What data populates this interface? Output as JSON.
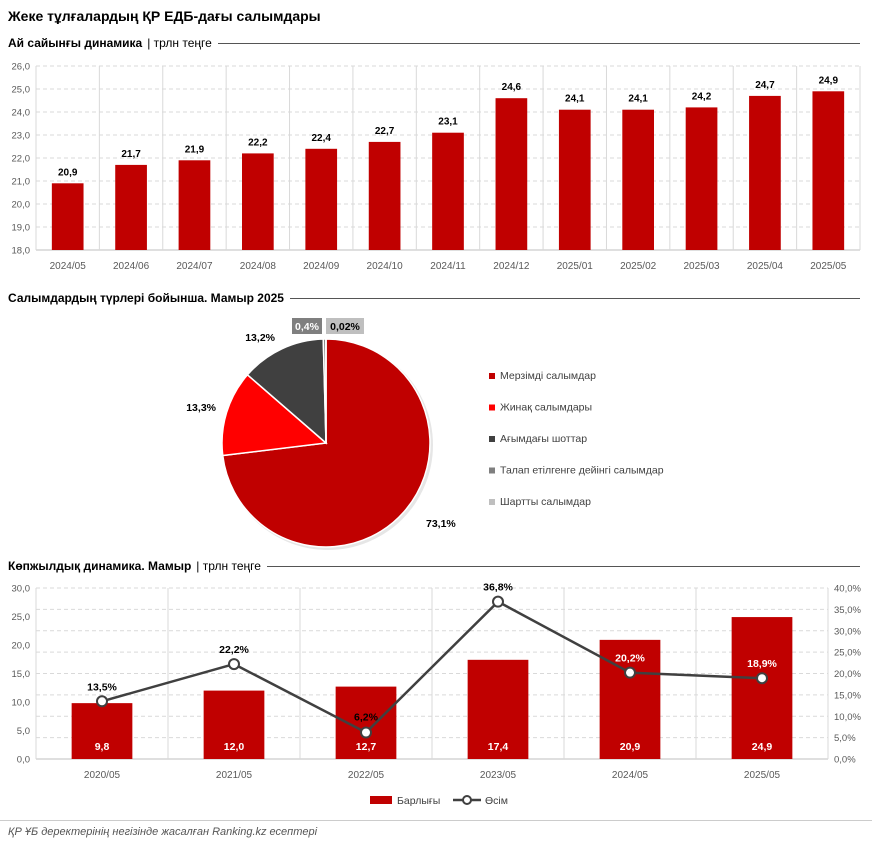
{
  "page": {
    "title": "Жеке тұлғалардың ҚР ЕДБ-дағы салымдары",
    "footer": "ҚР ҰБ деректерінің негізінде жасалған Ranking.kz есептері"
  },
  "chart_data": [
    {
      "type": "bar",
      "title": "Ай сайынғы динамика",
      "unit": "| трлн теңге",
      "categories": [
        "2024/05",
        "2024/06",
        "2024/07",
        "2024/08",
        "2024/09",
        "2024/10",
        "2024/11",
        "2024/12",
        "2025/01",
        "2025/02",
        "2025/03",
        "2025/04",
        "2025/05"
      ],
      "values": [
        20.9,
        21.7,
        21.9,
        22.2,
        22.4,
        22.7,
        23.1,
        24.6,
        24.1,
        24.1,
        24.2,
        24.7,
        24.9
      ],
      "value_labels": [
        "20,9",
        "21,7",
        "21,9",
        "22,2",
        "22,4",
        "22,7",
        "23,1",
        "24,6",
        "24,1",
        "24,1",
        "24,2",
        "24,7",
        "24,9"
      ],
      "ylim": [
        18,
        26
      ],
      "yticks": [
        "18,0",
        "19,0",
        "20,0",
        "21,0",
        "22,0",
        "23,0",
        "24,0",
        "25,0",
        "26,0"
      ],
      "color": "#c00000",
      "grid": true
    },
    {
      "type": "pie",
      "title": "Салымдардың түрлері бойынша. Мамыр 2025",
      "slices": [
        {
          "name": "Мерзімді салымдар",
          "value": 73.1,
          "label": "73,1%",
          "color": "#c00000"
        },
        {
          "name": "Жинақ салымдары",
          "value": 13.3,
          "label": "13,3%",
          "color": "#ff0000"
        },
        {
          "name": "Ағымдағы шоттар",
          "value": 13.2,
          "label": "13,2%",
          "color": "#404040"
        },
        {
          "name": "Талап етілгенге дейінгі салымдар",
          "value": 0.4,
          "label": "0,4%",
          "color": "#7f7f7f"
        },
        {
          "name": "Шартты салымдар",
          "value": 0.02,
          "label": "0,02%",
          "color": "#bfbfbf"
        }
      ],
      "legend_position": "right"
    },
    {
      "type": "bar",
      "title": "Көпжылдық динамика. Мамыр",
      "unit": "| трлн теңге",
      "categories": [
        "2020/05",
        "2021/05",
        "2022/05",
        "2023/05",
        "2024/05",
        "2025/05"
      ],
      "series": [
        {
          "name": "Барлығы",
          "type": "bar",
          "axis": "left",
          "color": "#c00000",
          "values": [
            9.8,
            12.0,
            12.7,
            17.4,
            20.9,
            24.9
          ],
          "labels": [
            "9,8",
            "12,0",
            "12,7",
            "17,4",
            "20,9",
            "24,9"
          ]
        },
        {
          "name": "Өсім",
          "type": "line",
          "axis": "right",
          "color": "#404040",
          "values": [
            13.5,
            22.2,
            6.2,
            36.8,
            20.2,
            18.9
          ],
          "labels": [
            "13,5%",
            "22,2%",
            "6,2%",
            "36,8%",
            "20,2%",
            "18,9%"
          ]
        }
      ],
      "ylim_left": [
        0,
        30
      ],
      "yticks_left": [
        "0,0",
        "5,0",
        "10,0",
        "15,0",
        "20,0",
        "25,0",
        "30,0"
      ],
      "ylim_right": [
        0,
        40
      ],
      "yticks_right": [
        "0,0%",
        "5,0%",
        "10,0%",
        "15,0%",
        "20,0%",
        "25,0%",
        "30,0%",
        "35,0%",
        "40,0%"
      ],
      "legend_position": "bottom",
      "grid": true
    }
  ]
}
